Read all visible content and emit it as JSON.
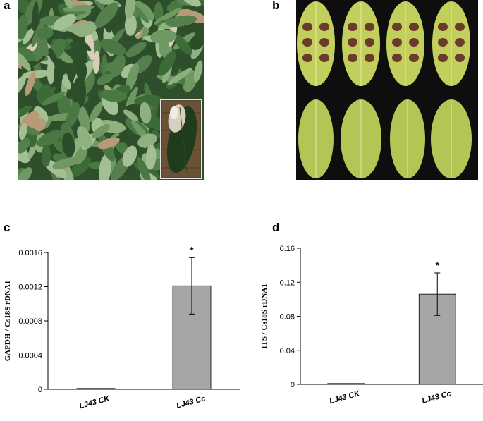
{
  "panels": {
    "a": {
      "letter": "a",
      "image": "tea-plants-leaf-blight-field-photo",
      "inset_image": "single-infected-leaf-photo"
    },
    "b": {
      "letter": "b",
      "image": "inoculated-and-control-leaves-photo"
    },
    "c": {
      "letter": "c"
    },
    "d": {
      "letter": "d"
    }
  },
  "colors": {
    "bar": "#a6a6a6",
    "foliage": "#3f6e3a",
    "leaf_yellow": "#c3cf5c",
    "lesion": "#6a3a2a",
    "photo_bg": "#0e0e0e"
  },
  "chart_data": [
    {
      "type": "bar",
      "panel": "c",
      "categories": [
        "LJ43 CK",
        "LJ43 Cc"
      ],
      "values": [
        1e-05,
        0.00121
      ],
      "errors": [
        0,
        0.00033
      ],
      "significance": [
        "",
        "*"
      ],
      "ylabel": "GAPDH / Cs18S rDNA1",
      "xlabel": "",
      "title": "",
      "ylim": [
        0,
        0.0016
      ],
      "yticks": [
        0,
        0.0004,
        0.0008,
        0.0012,
        0.0016
      ],
      "ytick_labels": [
        "0",
        "0.0004",
        "0.0008",
        "0.0012",
        "0.0016"
      ],
      "grid": false
    },
    {
      "type": "bar",
      "panel": "d",
      "categories": [
        "LJ43 CK",
        "LJ43 Cc"
      ],
      "values": [
        0.0,
        0.106
      ],
      "errors": [
        0,
        0.025
      ],
      "significance": [
        "",
        "*"
      ],
      "ylabel": "ITS / Cs18S rDNA1",
      "xlabel": "",
      "title": "",
      "ylim": [
        0,
        0.16
      ],
      "yticks": [
        0,
        0.04,
        0.08,
        0.12,
        0.16
      ],
      "ytick_labels": [
        "0",
        "0.04",
        "0.08",
        "0.12",
        "0.16"
      ],
      "grid": false
    }
  ]
}
